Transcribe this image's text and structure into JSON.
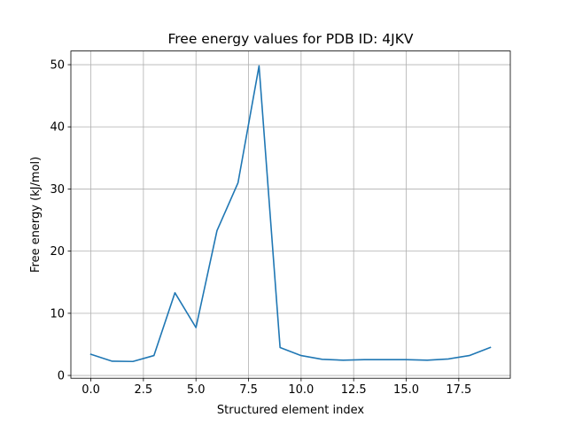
{
  "chart_data": {
    "type": "line",
    "title": "Free energy values for PDB ID: 4JKV",
    "xlabel": "Structured element index",
    "ylabel": "Free energy (kJ/mol)",
    "xlim": [
      -0.95,
      19.95
    ],
    "ylim": [
      -0.45,
      52.2
    ],
    "xticks": [
      0.0,
      2.5,
      5.0,
      7.5,
      10.0,
      12.5,
      15.0,
      17.5
    ],
    "xtick_labels": [
      "0.0",
      "2.5",
      "5.0",
      "7.5",
      "10.0",
      "12.5",
      "15.0",
      "17.5"
    ],
    "yticks": [
      0,
      10,
      20,
      30,
      40,
      50
    ],
    "ytick_labels": [
      "0",
      "10",
      "20",
      "30",
      "40",
      "50"
    ],
    "grid": true,
    "series": [
      {
        "color": "#1f77b4",
        "x": [
          0,
          1,
          2,
          3,
          4,
          5,
          6,
          7,
          8,
          9,
          10,
          11,
          12,
          13,
          14,
          15,
          16,
          17,
          18,
          19
        ],
        "y": [
          3.4,
          2.3,
          2.25,
          3.2,
          13.3,
          7.7,
          23.3,
          31.0,
          49.8,
          4.5,
          3.2,
          2.6,
          2.45,
          2.55,
          2.55,
          2.55,
          2.45,
          2.65,
          3.2,
          4.5
        ]
      }
    ]
  }
}
